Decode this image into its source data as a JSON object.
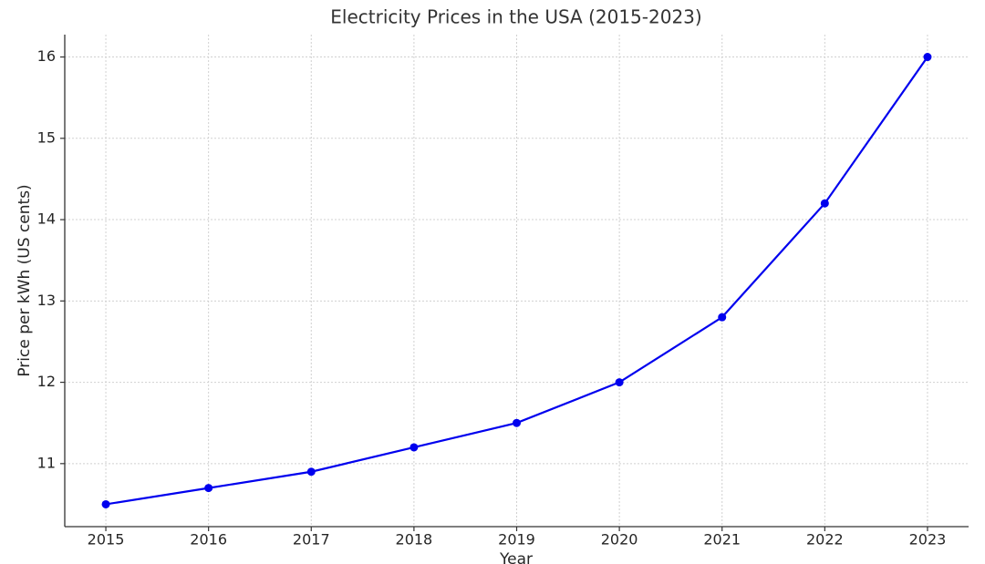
{
  "chart_data": {
    "type": "line",
    "title": "Electricity Prices in the USA (2015-2023)",
    "x_label": "Year",
    "y_label": "Price per kWh (US cents)",
    "x": [
      2015,
      2016,
      2017,
      2018,
      2019,
      2020,
      2021,
      2022,
      2023
    ],
    "series": [
      {
        "name": "Price per kWh",
        "color": "#0000ee",
        "values": [
          10.5,
          10.7,
          10.9,
          11.2,
          11.5,
          12.0,
          12.8,
          14.2,
          16.0
        ]
      }
    ],
    "xlim": [
      2014.6,
      2023.4
    ],
    "xticks": [
      2015,
      2016,
      2017,
      2018,
      2019,
      2020,
      2021,
      2022,
      2023
    ],
    "ylim": [
      10.225,
      16.275
    ],
    "yticks": [
      11,
      12,
      13,
      14,
      15,
      16
    ],
    "grid": true
  }
}
